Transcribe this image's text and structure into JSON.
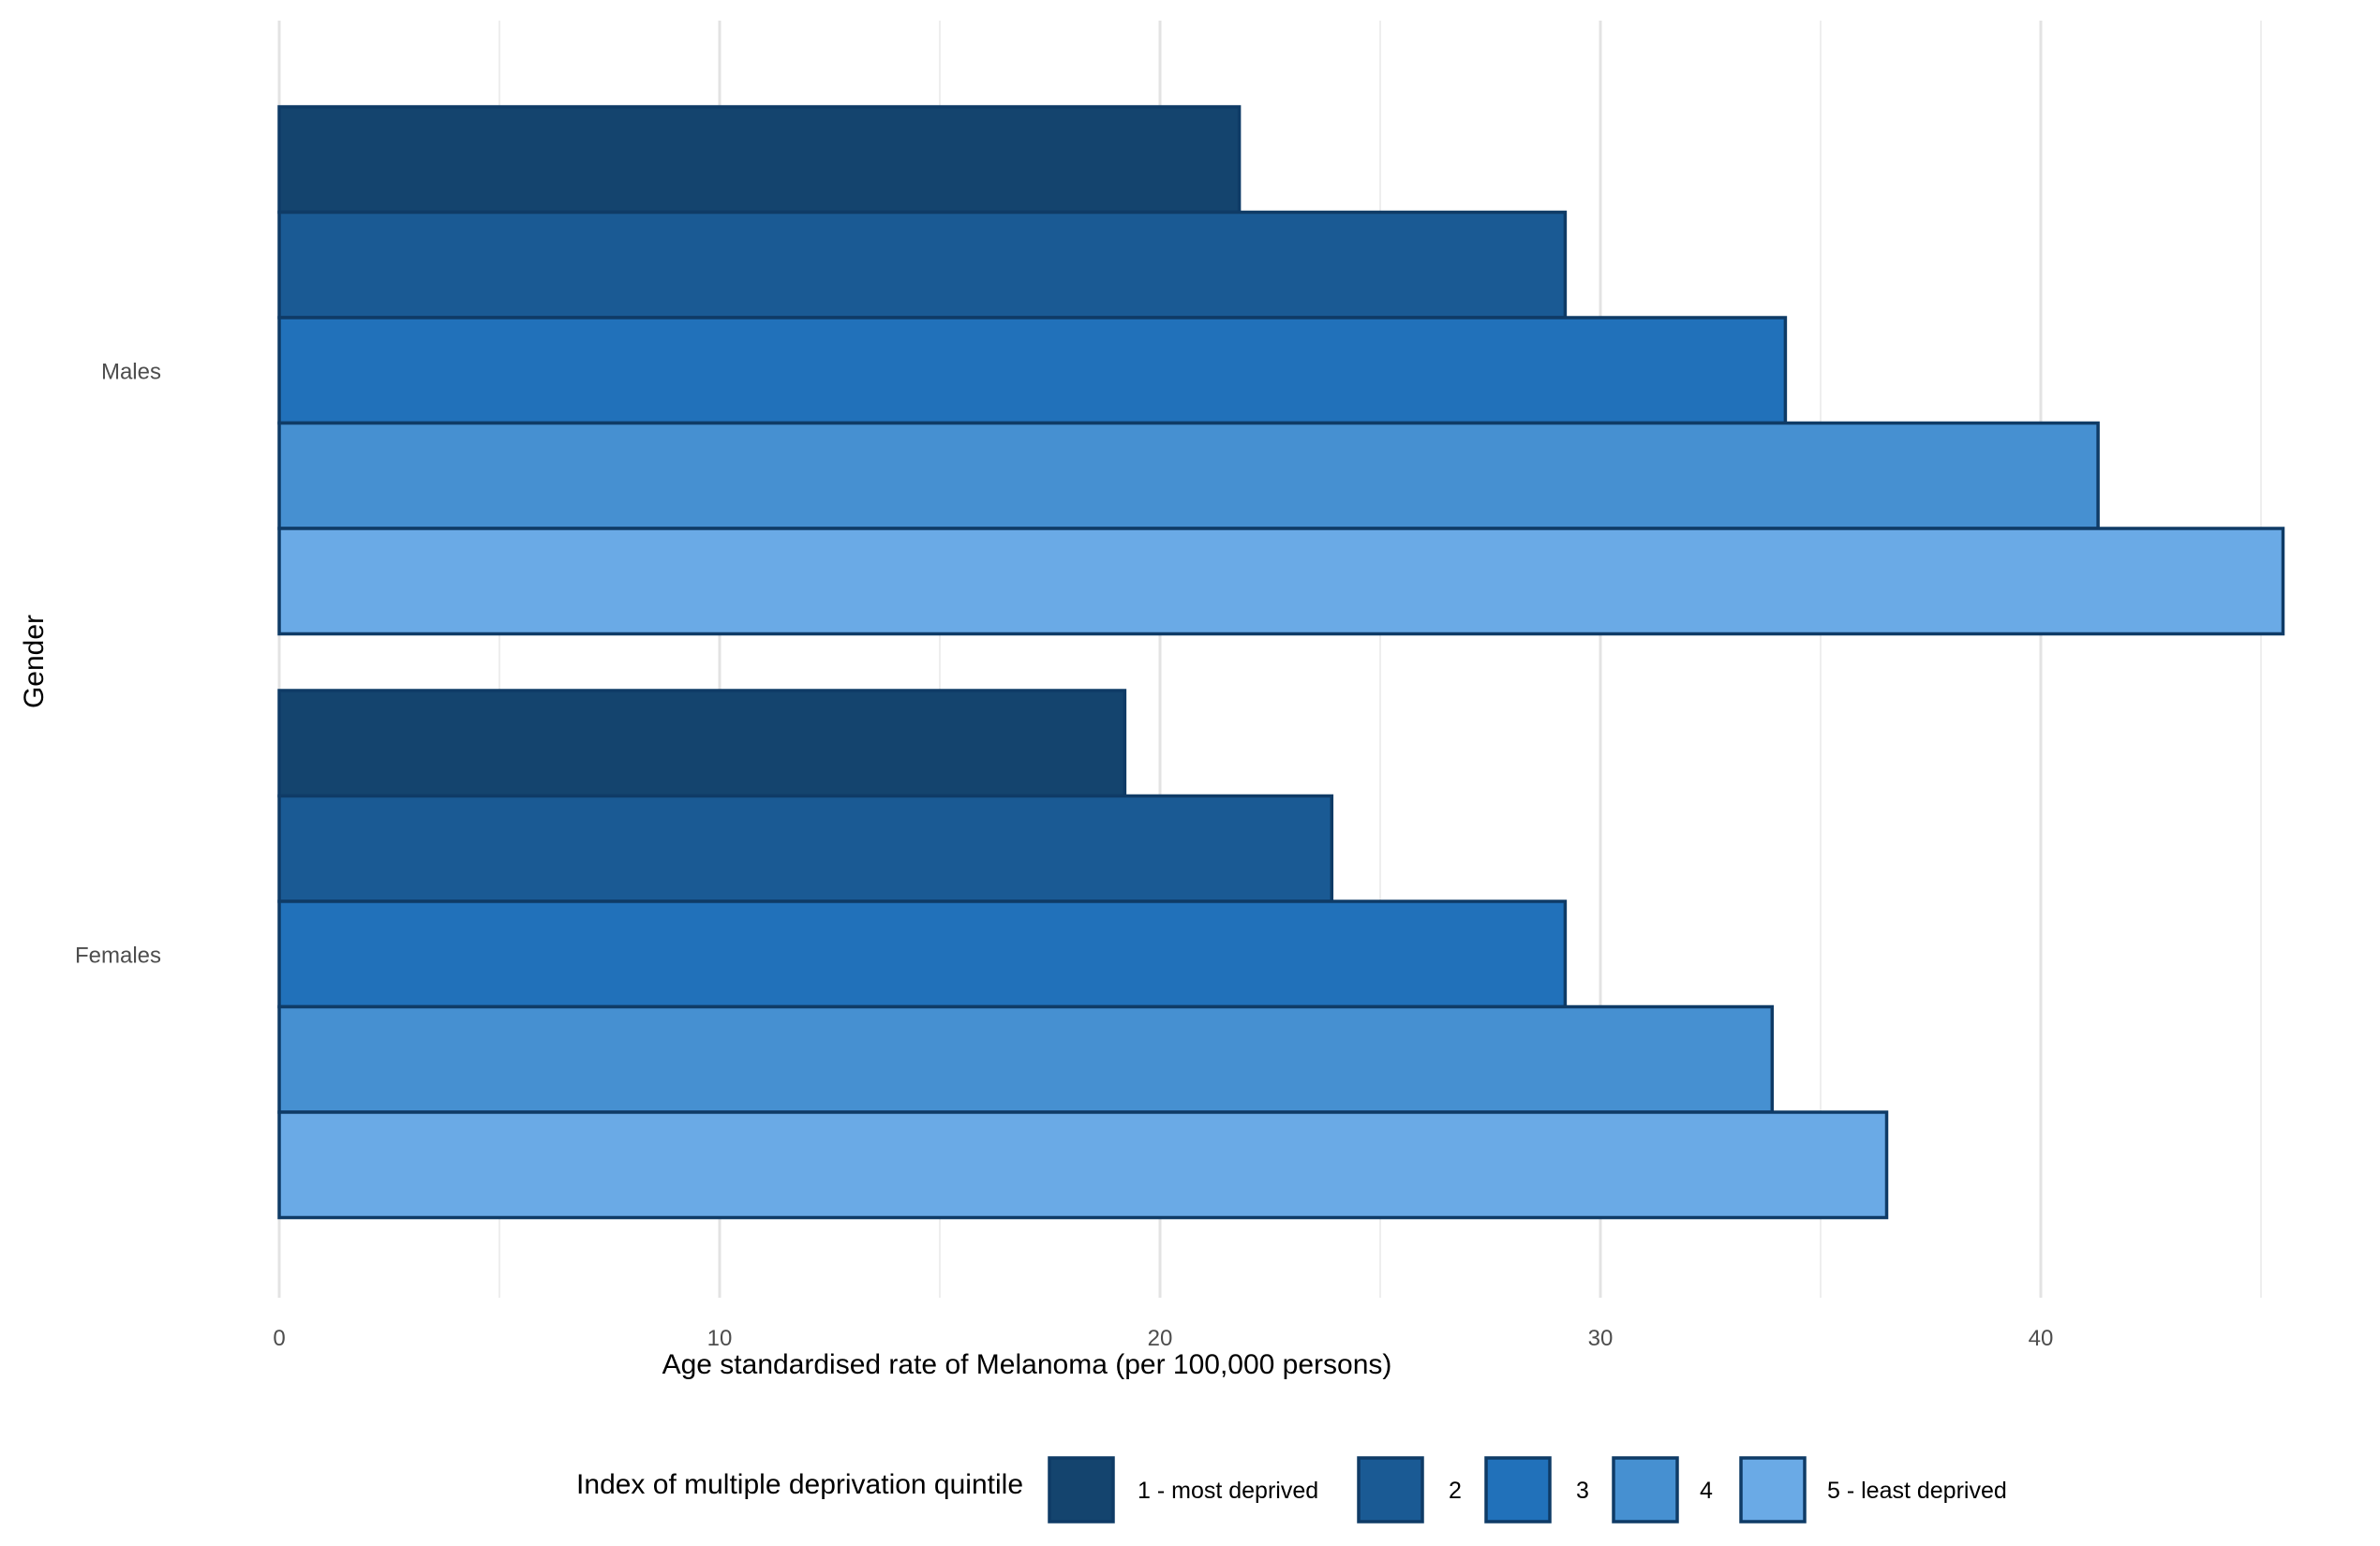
{
  "chart_data": {
    "type": "bar",
    "orientation": "horizontal",
    "categories": [
      "Males",
      "Females"
    ],
    "series": [
      {
        "name": "1 - most deprived",
        "values": [
          21.8,
          19.2
        ],
        "color": "#14446E"
      },
      {
        "name": "2",
        "values": [
          29.2,
          23.9
        ],
        "color": "#1A5A94"
      },
      {
        "name": "3",
        "values": [
          34.2,
          29.2
        ],
        "color": "#2171BA"
      },
      {
        "name": "4",
        "values": [
          41.3,
          33.9
        ],
        "color": "#4690D1"
      },
      {
        "name": "5 - least deprived",
        "values": [
          45.5,
          36.5
        ],
        "color": "#6AAAE6"
      }
    ],
    "xlabel": "Age standardised rate of Melanoma (per 100,000 persons)",
    "ylabel": "Gender",
    "xlim": [
      0,
      46.5
    ],
    "xticks": [
      0,
      10,
      20,
      30,
      40
    ],
    "grid": true,
    "bar_outline_color": "#0F3B66",
    "legend": {
      "title": "Index of multiple deprivation quintile",
      "position": "bottom"
    }
  }
}
